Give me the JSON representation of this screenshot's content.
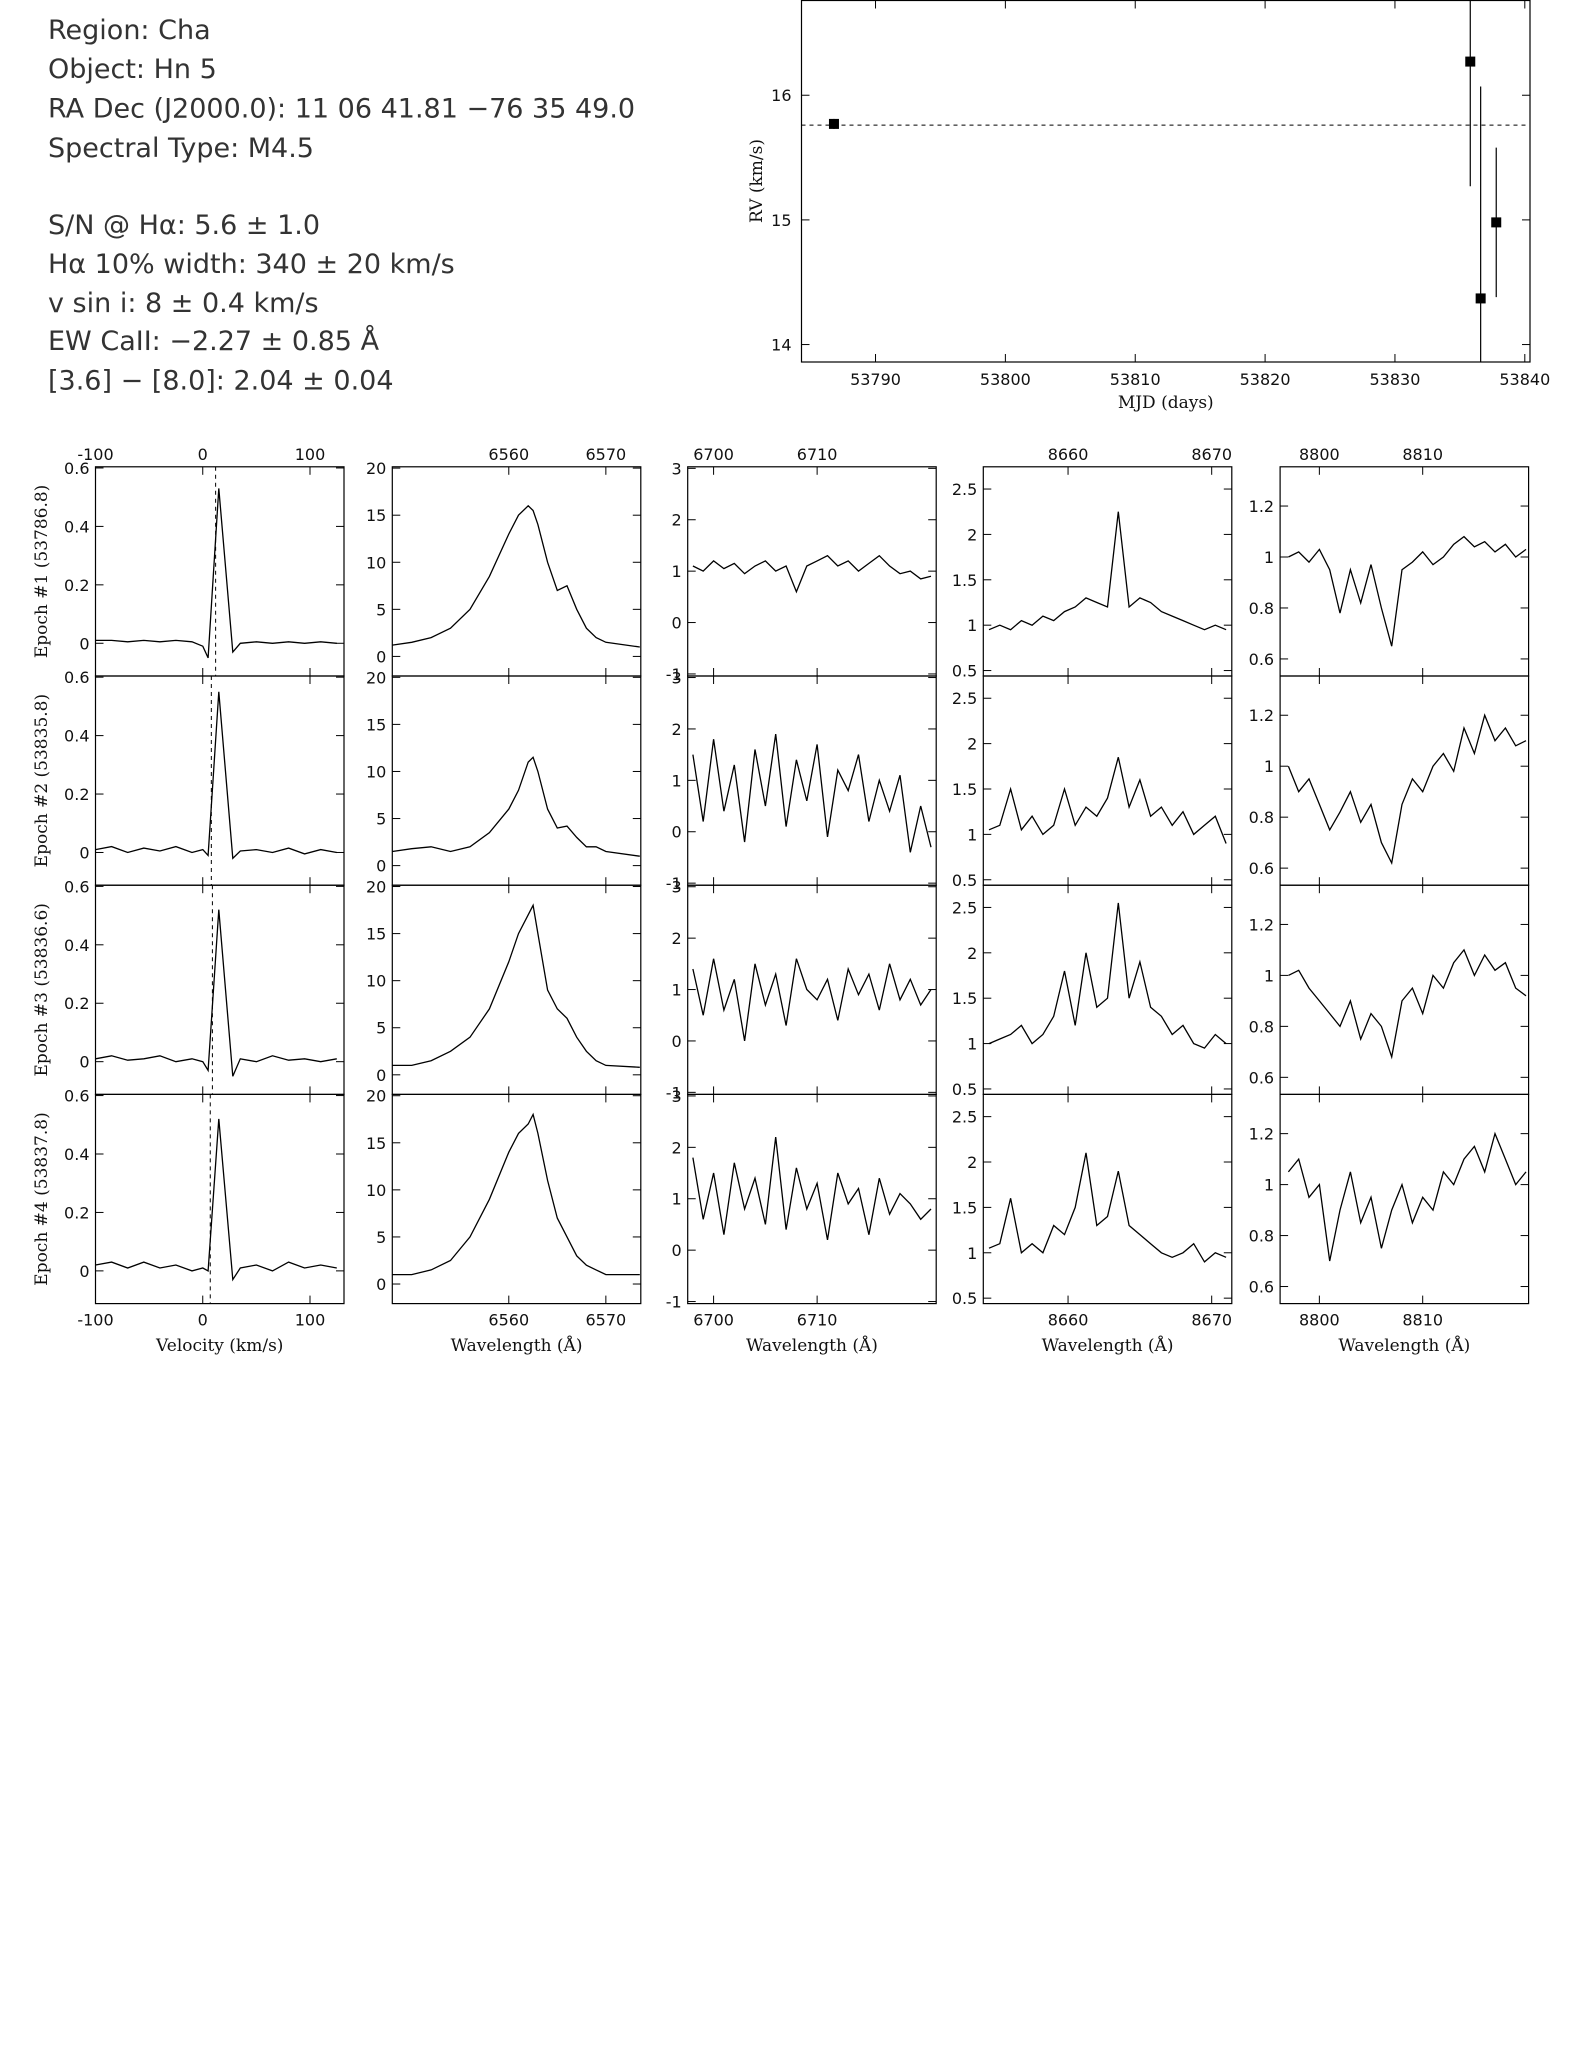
{
  "info": {
    "lines": [
      "Region: Cha",
      "Object: Hn 5",
      "RA Dec (J2000.0): 11 06 41.81 −76 35 49.0",
      "Spectral Type: M4.5",
      "S/N @ Hα: 5.6 ± 1.0",
      "Hα 10% width: 340 ± 20 km/s",
      "v sin i: 8 ± 0.4 km/s",
      "EW CaII: −2.27 ± 0.85 Å",
      "[3.6] − [8.0]: 2.04 ± 0.04"
    ]
  },
  "chart_data": [
    {
      "type": "scatter",
      "ylabel": "RV (km/s)",
      "xlabel": "MJD (days)",
      "x": [
        53786.8,
        53835.8,
        53836.6,
        53837.8
      ],
      "values": [
        15.77,
        16.27,
        14.37,
        14.98
      ],
      "errors": [
        0.04,
        1.0,
        1.7,
        0.6
      ],
      "hline": 15.76,
      "xlim": [
        53784.3,
        53840.4
      ],
      "ylim": [
        13.86,
        16.76
      ],
      "xticks": [
        53790,
        53800,
        53810,
        53820,
        53830,
        53840
      ],
      "yticks": [
        14,
        15,
        16
      ]
    },
    {
      "type": "line",
      "xlabel": "Velocity (km/s)",
      "x": [
        -100,
        -85,
        -70,
        -55,
        -40,
        -25,
        -10,
        0,
        5,
        15,
        28,
        35,
        50,
        65,
        80,
        95,
        110,
        125
      ],
      "vlines": [
        12,
        8,
        9,
        7
      ],
      "series": [
        {
          "name": "Epoch #1 (53786.8)",
          "values": [
            0.01,
            0.01,
            0.005,
            0.01,
            0.005,
            0.01,
            0.005,
            -0.01,
            -0.05,
            0.53,
            -0.03,
            0,
            0.005,
            0,
            0.005,
            0,
            0.005,
            0
          ]
        },
        {
          "name": "Epoch #2 (53835.8)",
          "values": [
            0.01,
            0.02,
            0,
            0.015,
            0.005,
            0.02,
            0,
            0.01,
            -0.01,
            0.55,
            -0.02,
            0.005,
            0.01,
            0,
            0.015,
            -0.005,
            0.01,
            0
          ]
        },
        {
          "name": "Epoch #3 (53836.6)",
          "values": [
            0.01,
            0.02,
            0.005,
            0.01,
            0.02,
            0,
            0.01,
            0,
            -0.03,
            0.52,
            -0.05,
            0.01,
            0,
            0.02,
            0.005,
            0.01,
            0,
            0.01
          ]
        },
        {
          "name": "Epoch #4 (53837.8)",
          "values": [
            0.02,
            0.03,
            0.01,
            0.03,
            0.01,
            0.02,
            0,
            0.01,
            0,
            0.52,
            -0.03,
            0.01,
            0.02,
            0,
            0.03,
            0.01,
            0.02,
            0.01
          ]
        }
      ],
      "xlim": [
        -100,
        131.7
      ],
      "ylim": [
        -0.112,
        0.604
      ],
      "xticks": [
        -100,
        0,
        100
      ],
      "yticks": [
        0,
        0.2,
        0.4,
        0.6
      ]
    },
    {
      "type": "line",
      "xlabel": "Wavelength (Å)",
      "x": [
        6548,
        6550,
        6552,
        6554,
        6556,
        6558,
        6560,
        6561,
        6562,
        6562.5,
        6563,
        6564,
        6565,
        6566,
        6567,
        6568,
        6569,
        6570,
        6573.5
      ],
      "series": [
        {
          "values": [
            1.2,
            1.5,
            2,
            3,
            5,
            8.5,
            13,
            15,
            16,
            15.5,
            14,
            10,
            7,
            7.5,
            5,
            3,
            2,
            1.5,
            1
          ]
        },
        {
          "values": [
            1.5,
            1.8,
            2,
            1.5,
            2,
            3.5,
            6,
            8,
            11,
            11.5,
            10,
            6,
            4,
            4.2,
            3,
            2,
            2,
            1.5,
            1
          ]
        },
        {
          "values": [
            1,
            1,
            1.5,
            2.5,
            4,
            7,
            12,
            15,
            17,
            18,
            15,
            9,
            7,
            6,
            4,
            2.5,
            1.5,
            1,
            0.8
          ]
        },
        {
          "values": [
            1,
            1,
            1.5,
            2.5,
            5,
            9,
            14,
            16,
            17,
            18,
            16,
            11,
            7,
            5,
            3,
            2,
            1.5,
            1,
            1
          ]
        }
      ],
      "xlim": [
        6548,
        6573.6
      ],
      "ylim": [
        -2.08,
        20.14
      ],
      "xticks": [
        6560,
        6570
      ],
      "yticks": [
        0,
        5,
        10,
        15,
        20
      ]
    },
    {
      "type": "line",
      "xlabel": "Wavelength (Å)",
      "x": [
        6698,
        6699,
        6700,
        6701,
        6702,
        6703,
        6704,
        6705,
        6706,
        6707,
        6708,
        6709,
        6710,
        6711,
        6712,
        6713,
        6714,
        6715,
        6716,
        6717,
        6718,
        6719,
        6720,
        6721
      ],
      "series": [
        {
          "values": [
            1.1,
            1.0,
            1.2,
            1.05,
            1.15,
            0.95,
            1.1,
            1.2,
            1.0,
            1.1,
            0.6,
            1.1,
            1.2,
            1.3,
            1.1,
            1.2,
            1.0,
            1.15,
            1.3,
            1.1,
            0.95,
            1.0,
            0.85,
            0.9
          ]
        },
        {
          "values": [
            1.5,
            0.2,
            1.8,
            0.4,
            1.3,
            -0.2,
            1.6,
            0.5,
            1.9,
            0.1,
            1.4,
            0.6,
            1.7,
            -0.1,
            1.2,
            0.8,
            1.5,
            0.2,
            1.0,
            0.4,
            1.1,
            -0.4,
            0.5,
            -0.3
          ]
        },
        {
          "values": [
            1.4,
            0.5,
            1.6,
            0.6,
            1.2,
            0.0,
            1.5,
            0.7,
            1.3,
            0.3,
            1.6,
            1.0,
            0.8,
            1.2,
            0.4,
            1.4,
            0.9,
            1.3,
            0.6,
            1.5,
            0.8,
            1.2,
            0.7,
            1.0
          ]
        },
        {
          "values": [
            1.8,
            0.6,
            1.5,
            0.3,
            1.7,
            0.8,
            1.4,
            0.5,
            2.2,
            0.4,
            1.6,
            0.8,
            1.3,
            0.2,
            1.5,
            0.9,
            1.2,
            0.3,
            1.4,
            0.7,
            1.1,
            0.9,
            0.6,
            0.8
          ]
        }
      ],
      "xlim": [
        6697.5,
        6721.5
      ],
      "ylim": [
        -1.04,
        3.03
      ],
      "xticks": [
        6700,
        6710
      ],
      "yticks": [
        -1,
        0,
        1,
        2,
        3
      ]
    },
    {
      "type": "line",
      "xlabel": "Wavelength (Å)",
      "x": [
        8654.5,
        8655.25,
        8656,
        8656.75,
        8657.5,
        8658.25,
        8659,
        8659.75,
        8660.5,
        8661.25,
        8662,
        8662.75,
        8663.5,
        8664.25,
        8665,
        8665.75,
        8666.5,
        8667.25,
        8668,
        8668.75,
        8669.5,
        8670.25,
        8671
      ],
      "series": [
        {
          "values": [
            0.95,
            1.0,
            0.95,
            1.05,
            1.0,
            1.1,
            1.05,
            1.15,
            1.2,
            1.3,
            1.25,
            1.2,
            2.25,
            1.2,
            1.3,
            1.25,
            1.15,
            1.1,
            1.05,
            1.0,
            0.95,
            1.0,
            0.95
          ]
        },
        {
          "values": [
            1.05,
            1.1,
            1.5,
            1.05,
            1.2,
            1.0,
            1.1,
            1.5,
            1.1,
            1.3,
            1.2,
            1.4,
            1.85,
            1.3,
            1.6,
            1.2,
            1.3,
            1.1,
            1.25,
            1.0,
            1.1,
            1.2,
            0.9
          ]
        },
        {
          "values": [
            1.0,
            1.05,
            1.1,
            1.2,
            1.0,
            1.1,
            1.3,
            1.8,
            1.2,
            2.0,
            1.4,
            1.5,
            2.55,
            1.5,
            1.9,
            1.4,
            1.3,
            1.1,
            1.2,
            1.0,
            0.95,
            1.1,
            1.0
          ]
        },
        {
          "values": [
            1.05,
            1.1,
            1.6,
            1.0,
            1.1,
            1.0,
            1.3,
            1.2,
            1.5,
            2.1,
            1.3,
            1.4,
            1.9,
            1.3,
            1.2,
            1.1,
            1.0,
            0.95,
            1.0,
            1.1,
            0.9,
            1.0,
            0.95
          ]
        }
      ],
      "xlim": [
        8654.1,
        8671.4
      ],
      "ylim": [
        0.44,
        2.745
      ],
      "xticks": [
        8660,
        8670
      ],
      "yticks": [
        0.5,
        1,
        1.5,
        2,
        2.5
      ]
    },
    {
      "type": "line",
      "xlabel": "Wavelength (Å)",
      "x": [
        8797,
        8798,
        8799,
        8800,
        8801,
        8802,
        8803,
        8804,
        8805,
        8806,
        8807,
        8808,
        8809,
        8810,
        8811,
        8812,
        8813,
        8814,
        8815,
        8816,
        8817,
        8818,
        8819,
        8820
      ],
      "series": [
        {
          "values": [
            1.0,
            1.02,
            0.98,
            1.03,
            0.95,
            0.78,
            0.95,
            0.82,
            0.97,
            0.8,
            0.65,
            0.95,
            0.98,
            1.02,
            0.97,
            1.0,
            1.05,
            1.08,
            1.04,
            1.06,
            1.02,
            1.05,
            1.0,
            1.03
          ]
        },
        {
          "values": [
            1.0,
            0.9,
            0.95,
            0.85,
            0.75,
            0.82,
            0.9,
            0.78,
            0.85,
            0.7,
            0.62,
            0.85,
            0.95,
            0.9,
            1.0,
            1.05,
            0.98,
            1.15,
            1.05,
            1.2,
            1.1,
            1.15,
            1.08,
            1.1
          ]
        },
        {
          "values": [
            1.0,
            1.02,
            0.95,
            0.9,
            0.85,
            0.8,
            0.9,
            0.75,
            0.85,
            0.8,
            0.68,
            0.9,
            0.95,
            0.85,
            1.0,
            0.95,
            1.05,
            1.1,
            1.0,
            1.08,
            1.02,
            1.05,
            0.95,
            0.92
          ]
        },
        {
          "values": [
            1.05,
            1.1,
            0.95,
            1.0,
            0.7,
            0.9,
            1.05,
            0.85,
            0.95,
            0.75,
            0.9,
            1.0,
            0.85,
            0.95,
            0.9,
            1.05,
            1.0,
            1.1,
            1.15,
            1.05,
            1.2,
            1.1,
            1.0,
            1.05
          ]
        }
      ],
      "xlim": [
        8796.2,
        8820.25
      ],
      "ylim": [
        0.533,
        1.354
      ],
      "xticks": [
        8800,
        8810
      ],
      "yticks": [
        0.6,
        0.8,
        1,
        1.2
      ]
    }
  ]
}
